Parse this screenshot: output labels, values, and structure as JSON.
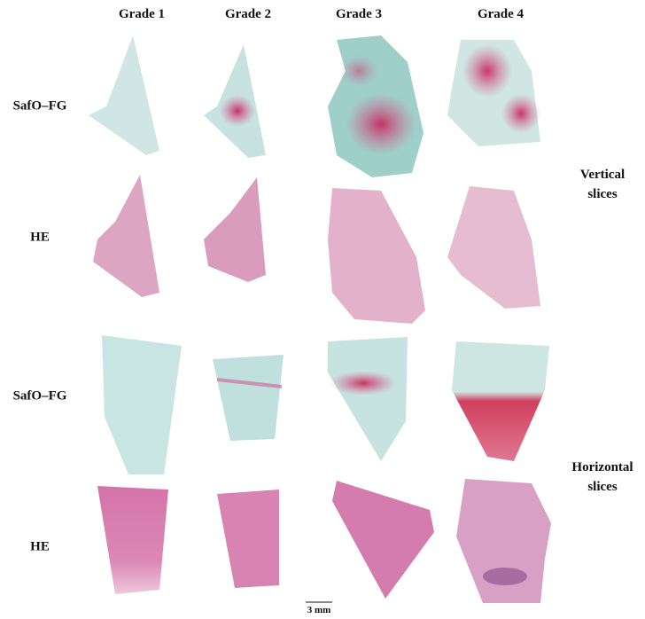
{
  "columns": [
    "Grade 1",
    "Grade 2",
    "Grade 3",
    "Grade 4"
  ],
  "rows": [
    "SafO–FG",
    "HE",
    "SafO–FG",
    "HE"
  ],
  "groups": [
    "Vertical slices",
    "Horizontal slices"
  ],
  "scale_bar": "3 mm"
}
